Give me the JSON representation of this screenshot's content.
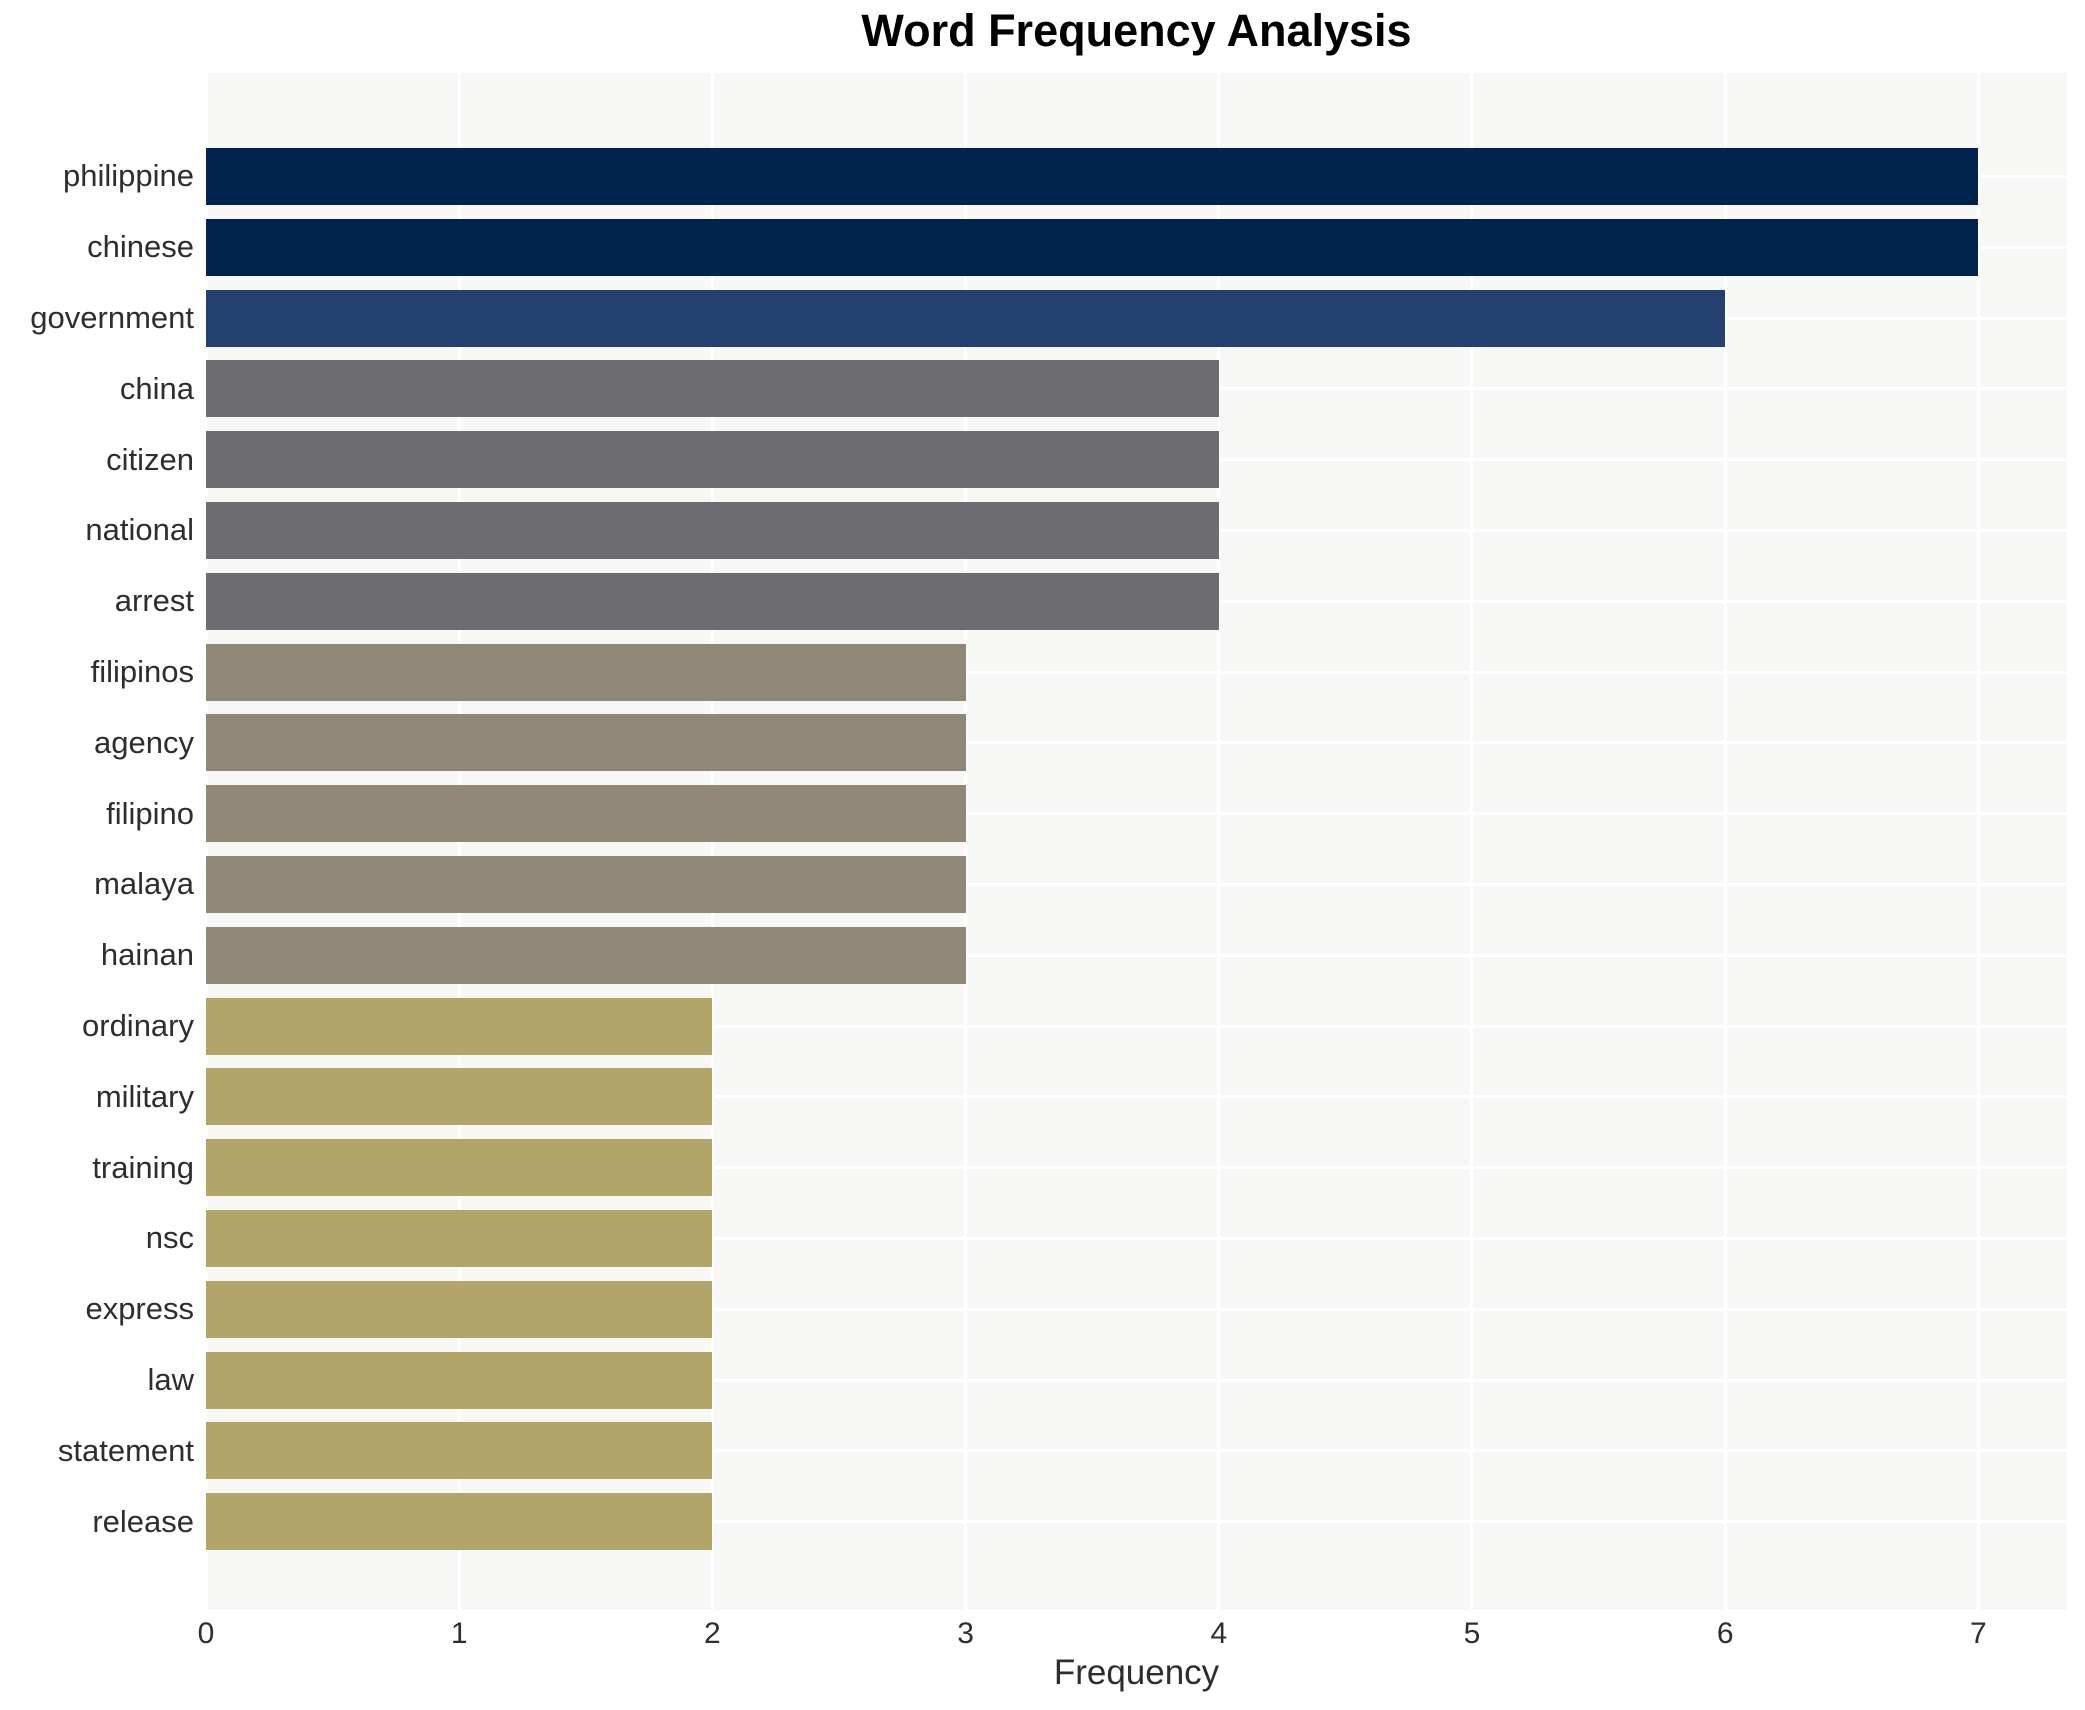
{
  "chart_data": {
    "type": "bar",
    "orientation": "horizontal",
    "title": "Word Frequency Analysis",
    "xlabel": "Frequency",
    "ylabel": "",
    "categories": [
      "philippine",
      "chinese",
      "government",
      "china",
      "citizen",
      "national",
      "arrest",
      "filipinos",
      "agency",
      "filipino",
      "malaya",
      "hainan",
      "ordinary",
      "military",
      "training",
      "nsc",
      "express",
      "law",
      "statement",
      "release"
    ],
    "values": [
      7,
      7,
      6,
      4,
      4,
      4,
      4,
      3,
      3,
      3,
      3,
      3,
      2,
      2,
      2,
      2,
      2,
      2,
      2,
      2
    ],
    "bar_colors": [
      "#02234e",
      "#02234e",
      "#24406e",
      "#6d6d71",
      "#6d6d71",
      "#6d6d71",
      "#6d6d71",
      "#8f8877",
      "#8f8877",
      "#8f8877",
      "#8f8877",
      "#8f8877",
      "#b1a569",
      "#b1a569",
      "#b1a569",
      "#b1a569",
      "#b1a569",
      "#b1a569",
      "#b1a569",
      "#b1a569"
    ],
    "x_ticks": [
      0,
      1,
      2,
      3,
      4,
      5,
      6,
      7
    ],
    "xlim": [
      0,
      7.35
    ],
    "grid": true,
    "legend": false,
    "colors": {
      "page_background": "#ffffff",
      "plot_background": "#f7f7f6",
      "gridline": "#ffffff",
      "title_text": "#000000",
      "axis_text": "#2e2e2e"
    }
  }
}
